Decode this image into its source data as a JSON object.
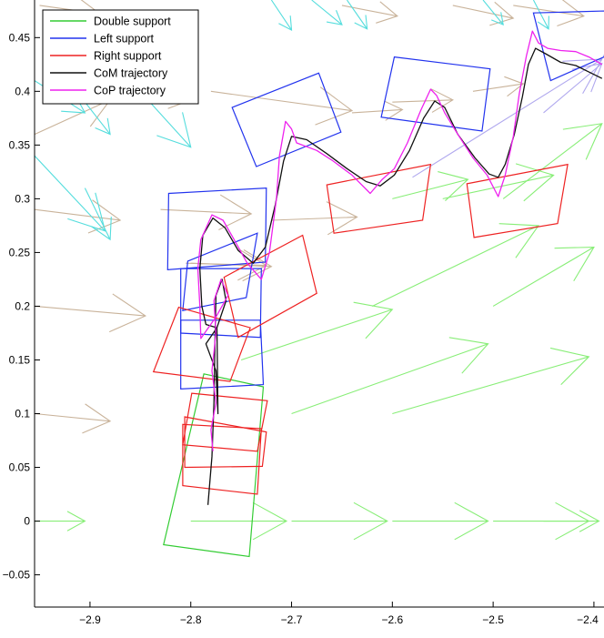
{
  "chart_data": {
    "type": "line",
    "title": "",
    "xlabel": "",
    "ylabel": "",
    "xlim": [
      -2.955,
      -2.39
    ],
    "ylim": [
      -0.08,
      0.485
    ],
    "grid": false,
    "legend_position": "top-left",
    "xticks": [
      -2.9,
      -2.8,
      -2.7,
      -2.6,
      -2.5,
      -2.4
    ],
    "xtick_labels": [
      "−2.9",
      "−2.8",
      "−2.7",
      "−2.6",
      "−2.5",
      "−2.4"
    ],
    "yticks": [
      -0.05,
      0,
      0.05,
      0.1,
      0.15,
      0.2,
      0.25,
      0.3,
      0.35,
      0.4,
      0.45
    ],
    "ytick_labels": [
      "−0.05",
      "0",
      "0.05",
      "0.1",
      "0.15",
      "0.2",
      "0.25",
      "0.3",
      "0.35",
      "0.4",
      "0.45"
    ],
    "colors": {
      "double_support": "#33cc33",
      "left_support": "#2233ee",
      "right_support": "#ee2222",
      "com": "#111111",
      "cop": "#ee22ee",
      "arrows_green": "#88ee77",
      "arrows_tan": "#c9b39a",
      "arrows_cyan": "#55dddd",
      "arrows_lavender": "#b0a8ee"
    },
    "legend": [
      {
        "label": "Double support",
        "color": "#33cc33"
      },
      {
        "label": "Left support",
        "color": "#2233ee"
      },
      {
        "label": "Right support",
        "color": "#ee2222"
      },
      {
        "label": "CoM trajectory",
        "color": "#111111"
      },
      {
        "label": "CoP trajectory",
        "color": "#ee22ee"
      }
    ],
    "series": [
      {
        "name": "Double support",
        "kind": "polygons",
        "color": "#33cc33",
        "polygons": [
          [
            [
              -2.787,
              0.137
            ],
            [
              -2.728,
              0.125
            ],
            [
              -2.742,
              -0.033
            ],
            [
              -2.827,
              -0.022
            ]
          ]
        ]
      },
      {
        "name": "Left support",
        "kind": "polygons",
        "color": "#2233ee",
        "polygons": [
          [
            [
              -2.822,
              0.305
            ],
            [
              -2.725,
              0.31
            ],
            [
              -2.726,
              0.241
            ],
            [
              -2.823,
              0.234
            ]
          ],
          [
            [
              -2.759,
              0.385
            ],
            [
              -2.673,
              0.417
            ],
            [
              -2.651,
              0.362
            ],
            [
              -2.735,
              0.33
            ]
          ],
          [
            [
              -2.803,
              0.242
            ],
            [
              -2.734,
              0.268
            ],
            [
              -2.745,
              0.208
            ],
            [
              -2.808,
              0.196
            ]
          ],
          [
            [
              -2.81,
              0.235
            ],
            [
              -2.73,
              0.235
            ],
            [
              -2.731,
              0.171
            ],
            [
              -2.81,
              0.175
            ]
          ],
          [
            [
              -2.81,
              0.187
            ],
            [
              -2.731,
              0.187
            ],
            [
              -2.728,
              0.127
            ],
            [
              -2.81,
              0.123
            ]
          ],
          [
            [
              -2.598,
              0.432
            ],
            [
              -2.503,
              0.421
            ],
            [
              -2.511,
              0.363
            ],
            [
              -2.611,
              0.376
            ]
          ],
          [
            [
              -2.46,
              0.473
            ],
            [
              -2.381,
              0.475
            ],
            [
              -2.39,
              0.432
            ],
            [
              -2.443,
              0.41
            ]
          ]
        ]
      },
      {
        "name": "Right support",
        "kind": "polygons",
        "color": "#ee2222",
        "polygons": [
          [
            [
              -2.812,
              0.199
            ],
            [
              -2.741,
              0.18
            ],
            [
              -2.761,
              0.13
            ],
            [
              -2.837,
              0.139
            ]
          ],
          [
            [
              -2.767,
              0.227
            ],
            [
              -2.689,
              0.266
            ],
            [
              -2.675,
              0.212
            ],
            [
              -2.753,
              0.171
            ]
          ],
          [
            [
              -2.799,
              0.119
            ],
            [
              -2.724,
              0.112
            ],
            [
              -2.734,
              0.065
            ],
            [
              -2.808,
              0.071
            ]
          ],
          [
            [
              -2.806,
              0.097
            ],
            [
              -2.725,
              0.083
            ],
            [
              -2.729,
              0.051
            ],
            [
              -2.806,
              0.05
            ]
          ],
          [
            [
              -2.808,
              0.09
            ],
            [
              -2.73,
              0.086
            ],
            [
              -2.734,
              0.025
            ],
            [
              -2.808,
              0.033
            ]
          ],
          [
            [
              -2.665,
              0.313
            ],
            [
              -2.562,
              0.332
            ],
            [
              -2.57,
              0.28
            ],
            [
              -2.658,
              0.268
            ]
          ],
          [
            [
              -2.526,
              0.314
            ],
            [
              -2.426,
              0.332
            ],
            [
              -2.436,
              0.277
            ],
            [
              -2.519,
              0.264
            ]
          ]
        ]
      },
      {
        "name": "CoM trajectory",
        "kind": "line",
        "color": "#111111",
        "points": [
          [
            -2.783,
            0.015
          ],
          [
            -2.779,
            0.06
          ],
          [
            -2.777,
            0.11
          ],
          [
            -2.776,
            0.165
          ],
          [
            -2.775,
            0.21
          ],
          [
            -2.769,
            0.225
          ],
          [
            -2.765,
            0.205
          ],
          [
            -2.774,
            0.18
          ],
          [
            -2.785,
            0.165
          ],
          [
            -2.775,
            0.14
          ],
          [
            -2.773,
            0.1
          ],
          [
            -2.774,
            0.18
          ],
          [
            -2.785,
            0.183
          ],
          [
            -2.789,
            0.2
          ],
          [
            -2.791,
            0.235
          ],
          [
            -2.788,
            0.266
          ],
          [
            -2.778,
            0.282
          ],
          [
            -2.766,
            0.273
          ],
          [
            -2.753,
            0.252
          ],
          [
            -2.738,
            0.24
          ],
          [
            -2.726,
            0.255
          ],
          [
            -2.716,
            0.295
          ],
          [
            -2.708,
            0.335
          ],
          [
            -2.7,
            0.358
          ],
          [
            -2.685,
            0.355
          ],
          [
            -2.665,
            0.342
          ],
          [
            -2.645,
            0.328
          ],
          [
            -2.626,
            0.316
          ],
          [
            -2.612,
            0.312
          ],
          [
            -2.598,
            0.322
          ],
          [
            -2.583,
            0.345
          ],
          [
            -2.569,
            0.375
          ],
          [
            -2.558,
            0.391
          ],
          [
            -2.548,
            0.385
          ],
          [
            -2.535,
            0.36
          ],
          [
            -2.518,
            0.338
          ],
          [
            -2.504,
            0.323
          ],
          [
            -2.495,
            0.32
          ],
          [
            -2.488,
            0.332
          ],
          [
            -2.479,
            0.36
          ],
          [
            -2.471,
            0.395
          ],
          [
            -2.465,
            0.425
          ],
          [
            -2.458,
            0.44
          ],
          [
            -2.448,
            0.435
          ],
          [
            -2.433,
            0.427
          ],
          [
            -2.418,
            0.424
          ],
          [
            -2.405,
            0.418
          ],
          [
            -2.392,
            0.412
          ]
        ]
      },
      {
        "name": "CoP trajectory",
        "kind": "line",
        "color": "#ee22ee",
        "points": [
          [
            -2.778,
            0.065
          ],
          [
            -2.78,
            0.085
          ],
          [
            -2.775,
            0.11
          ],
          [
            -2.779,
            0.14
          ],
          [
            -2.775,
            0.175
          ],
          [
            -2.777,
            0.205
          ],
          [
            -2.77,
            0.225
          ],
          [
            -2.763,
            0.21
          ],
          [
            -2.775,
            0.19
          ],
          [
            -2.79,
            0.17
          ],
          [
            -2.791,
            0.2
          ],
          [
            -2.793,
            0.235
          ],
          [
            -2.79,
            0.262
          ],
          [
            -2.779,
            0.285
          ],
          [
            -2.768,
            0.28
          ],
          [
            -2.757,
            0.262
          ],
          [
            -2.744,
            0.24
          ],
          [
            -2.73,
            0.225
          ],
          [
            -2.722,
            0.25
          ],
          [
            -2.715,
            0.3
          ],
          [
            -2.712,
            0.34
          ],
          [
            -2.706,
            0.372
          ],
          [
            -2.7,
            0.365
          ],
          [
            -2.695,
            0.352
          ],
          [
            -2.675,
            0.345
          ],
          [
            -2.66,
            0.336
          ],
          [
            -2.64,
            0.322
          ],
          [
            -2.622,
            0.305
          ],
          [
            -2.61,
            0.318
          ],
          [
            -2.598,
            0.328
          ],
          [
            -2.585,
            0.352
          ],
          [
            -2.572,
            0.382
          ],
          [
            -2.562,
            0.402
          ],
          [
            -2.556,
            0.396
          ],
          [
            -2.548,
            0.38
          ],
          [
            -2.535,
            0.36
          ],
          [
            -2.52,
            0.338
          ],
          [
            -2.506,
            0.322
          ],
          [
            -2.495,
            0.302
          ],
          [
            -2.488,
            0.322
          ],
          [
            -2.48,
            0.358
          ],
          [
            -2.474,
            0.398
          ],
          [
            -2.467,
            0.433
          ],
          [
            -2.461,
            0.456
          ],
          [
            -2.455,
            0.445
          ],
          [
            -2.446,
            0.44
          ],
          [
            -2.433,
            0.438
          ],
          [
            -2.418,
            0.437
          ],
          [
            -2.405,
            0.432
          ],
          [
            -2.392,
            0.425
          ]
        ]
      },
      {
        "name": "",
        "kind": "arrows",
        "color": "#88ee77",
        "arrows": [
          [
            -2.955,
            0.0,
            -2.905,
            0.0
          ],
          [
            -2.8,
            0.0,
            -2.705,
            0.0
          ],
          [
            -2.7,
            0.0,
            -2.605,
            0.0
          ],
          [
            -2.6,
            0.0,
            -2.505,
            0.0
          ],
          [
            -2.5,
            0.0,
            -2.405,
            0.0
          ],
          [
            -2.45,
            0.0,
            -2.395,
            0.0
          ],
          [
            -2.7,
            0.1,
            -2.505,
            0.165
          ],
          [
            -2.6,
            0.1,
            -2.405,
            0.153
          ],
          [
            -2.75,
            0.15,
            -2.6,
            0.197
          ],
          [
            -2.62,
            0.2,
            -2.455,
            0.275
          ],
          [
            -2.55,
            0.3,
            -2.44,
            0.322
          ],
          [
            -2.6,
            0.3,
            -2.525,
            0.318
          ],
          [
            -2.5,
            0.2,
            -2.4,
            0.255
          ],
          [
            -2.49,
            0.3,
            -2.392,
            0.37
          ]
        ]
      },
      {
        "name": "",
        "kind": "arrows",
        "color": "#c9b39a",
        "arrows": [
          [
            -2.955,
            0.1,
            -2.88,
            0.093
          ],
          [
            -2.955,
            0.2,
            -2.845,
            0.191
          ],
          [
            -2.955,
            0.29,
            -2.87,
            0.28
          ],
          [
            -2.83,
            0.29,
            -2.74,
            0.286
          ],
          [
            -2.72,
            0.28,
            -2.635,
            0.283
          ],
          [
            -2.805,
            0.24,
            -2.725,
            0.238
          ],
          [
            -2.955,
            0.36,
            -2.88,
            0.392
          ],
          [
            -2.86,
            0.4,
            -2.8,
            0.392
          ],
          [
            -2.78,
            0.4,
            -2.64,
            0.382
          ],
          [
            -2.64,
            0.38,
            -2.59,
            0.383
          ],
          [
            -2.6,
            0.39,
            -2.54,
            0.392
          ],
          [
            -2.52,
            0.4,
            -2.47,
            0.407
          ],
          [
            -2.95,
            0.48,
            -2.89,
            0.472
          ],
          [
            -2.65,
            0.48,
            -2.595,
            0.47
          ],
          [
            -2.54,
            0.48,
            -2.48,
            0.468
          ],
          [
            -2.48,
            0.48,
            -2.41,
            0.47
          ],
          [
            -2.8,
            0.24,
            -2.72,
            0.237
          ]
        ]
      },
      {
        "name": "",
        "kind": "arrows",
        "color": "#55dddd",
        "arrows": [
          [
            -2.955,
            0.41,
            -2.905,
            0.38
          ],
          [
            -2.905,
            0.39,
            -2.88,
            0.36
          ],
          [
            -2.955,
            0.34,
            -2.885,
            0.27
          ],
          [
            -2.905,
            0.31,
            -2.88,
            0.262
          ],
          [
            -2.86,
            0.41,
            -2.8,
            0.348
          ],
          [
            -2.68,
            0.485,
            -2.65,
            0.462
          ],
          [
            -2.72,
            0.485,
            -2.7,
            0.457
          ],
          [
            -2.645,
            0.485,
            -2.625,
            0.458
          ],
          [
            -2.51,
            0.485,
            -2.49,
            0.462
          ],
          [
            -2.46,
            0.485,
            -2.445,
            0.458
          ]
        ]
      },
      {
        "name": "",
        "kind": "arrows",
        "color": "#b0a8ee",
        "arrows": [
          [
            -2.58,
            0.32,
            -2.392,
            0.43
          ],
          [
            -2.45,
            0.38,
            -2.392,
            0.426
          ]
        ]
      }
    ]
  }
}
